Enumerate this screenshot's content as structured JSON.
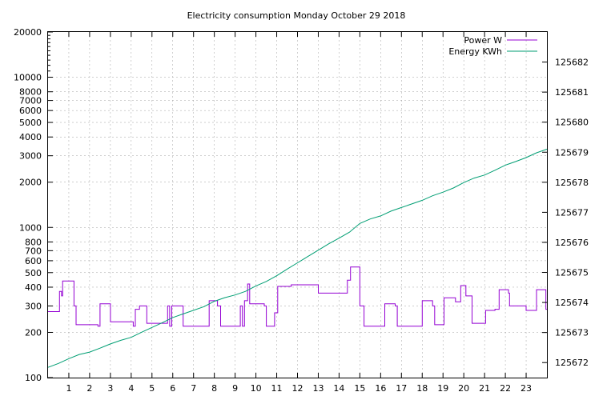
{
  "chart_data": {
    "type": "line",
    "title": "Electricity consumption Monday October 29 2018",
    "xlabel": "",
    "ylabel": "",
    "y2label": "",
    "grid": true,
    "legend_position": "top-right",
    "x_range": [
      0,
      24
    ],
    "x_ticks": [
      1,
      2,
      3,
      4,
      5,
      6,
      7,
      8,
      9,
      10,
      11,
      12,
      13,
      14,
      15,
      16,
      17,
      18,
      19,
      20,
      21,
      22,
      23
    ],
    "y_scale": "log",
    "y_range": [
      100,
      20000
    ],
    "y_ticks": [
      100,
      200,
      300,
      400,
      500,
      600,
      700,
      800,
      1000,
      2000,
      3000,
      4000,
      5000,
      6000,
      7000,
      8000,
      10000,
      20000
    ],
    "y2_range": [
      125671.5,
      125683
    ],
    "y2_ticks": [
      125672,
      125673,
      125674,
      125675,
      125676,
      125677,
      125678,
      125679,
      125680,
      125681,
      125682
    ],
    "series": [
      {
        "name": "Power W",
        "axis": "y",
        "color": "#9400d3",
        "step": true,
        "points": [
          [
            0.0,
            275
          ],
          [
            0.55,
            375
          ],
          [
            0.65,
            350
          ],
          [
            0.7,
            440
          ],
          [
            1.25,
            300
          ],
          [
            1.35,
            225
          ],
          [
            2.4,
            220
          ],
          [
            2.5,
            310
          ],
          [
            3.0,
            235
          ],
          [
            4.1,
            220
          ],
          [
            4.2,
            285
          ],
          [
            4.4,
            300
          ],
          [
            4.75,
            230
          ],
          [
            5.75,
            300
          ],
          [
            5.85,
            220
          ],
          [
            5.95,
            300
          ],
          [
            6.5,
            220
          ],
          [
            7.75,
            325
          ],
          [
            8.15,
            300
          ],
          [
            8.3,
            220
          ],
          [
            9.25,
            300
          ],
          [
            9.35,
            220
          ],
          [
            9.45,
            325
          ],
          [
            9.6,
            420
          ],
          [
            9.7,
            310
          ],
          [
            10.4,
            300
          ],
          [
            10.5,
            220
          ],
          [
            10.9,
            270
          ],
          [
            11.05,
            405
          ],
          [
            11.7,
            415
          ],
          [
            13.0,
            365
          ],
          [
            14.4,
            445
          ],
          [
            14.55,
            545
          ],
          [
            15.0,
            300
          ],
          [
            15.2,
            220
          ],
          [
            16.2,
            310
          ],
          [
            16.7,
            300
          ],
          [
            16.8,
            220
          ],
          [
            18.0,
            325
          ],
          [
            18.5,
            300
          ],
          [
            18.6,
            225
          ],
          [
            19.05,
            340
          ],
          [
            19.6,
            320
          ],
          [
            19.85,
            410
          ],
          [
            20.1,
            350
          ],
          [
            20.4,
            230
          ],
          [
            21.05,
            280
          ],
          [
            21.5,
            285
          ],
          [
            21.7,
            385
          ],
          [
            22.15,
            365
          ],
          [
            22.2,
            300
          ],
          [
            23.0,
            280
          ],
          [
            23.5,
            385
          ],
          [
            23.95,
            285
          ],
          [
            24.0,
            285
          ]
        ]
      },
      {
        "name": "Energy KWh",
        "axis": "y2",
        "color": "#009e73",
        "step": false,
        "points": [
          [
            0,
            125671.84
          ],
          [
            0.5,
            125671.97
          ],
          [
            1,
            125672.13
          ],
          [
            1.5,
            125672.27
          ],
          [
            2,
            125672.35
          ],
          [
            2.5,
            125672.48
          ],
          [
            3,
            125672.62
          ],
          [
            3.5,
            125672.74
          ],
          [
            4,
            125672.84
          ],
          [
            4.5,
            125673.01
          ],
          [
            5,
            125673.17
          ],
          [
            5.5,
            125673.33
          ],
          [
            6,
            125673.5
          ],
          [
            6.5,
            125673.62
          ],
          [
            7,
            125673.74
          ],
          [
            7.5,
            125673.86
          ],
          [
            8,
            125674.04
          ],
          [
            8.5,
            125674.16
          ],
          [
            9,
            125674.25
          ],
          [
            9.5,
            125674.37
          ],
          [
            10,
            125674.55
          ],
          [
            10.5,
            125674.7
          ],
          [
            11,
            125674.89
          ],
          [
            11.5,
            125675.11
          ],
          [
            12,
            125675.32
          ],
          [
            12.5,
            125675.53
          ],
          [
            13,
            125675.74
          ],
          [
            13.5,
            125675.95
          ],
          [
            14,
            125676.14
          ],
          [
            14.5,
            125676.34
          ],
          [
            15,
            125676.63
          ],
          [
            15.5,
            125676.78
          ],
          [
            16,
            125676.88
          ],
          [
            16.5,
            125677.04
          ],
          [
            17,
            125677.16
          ],
          [
            17.5,
            125677.28
          ],
          [
            18,
            125677.4
          ],
          [
            18.5,
            125677.55
          ],
          [
            19,
            125677.67
          ],
          [
            19.5,
            125677.81
          ],
          [
            20,
            125677.99
          ],
          [
            20.5,
            125678.14
          ],
          [
            21,
            125678.24
          ],
          [
            21.5,
            125678.4
          ],
          [
            22,
            125678.57
          ],
          [
            22.5,
            125678.69
          ],
          [
            23,
            125678.82
          ],
          [
            23.5,
            125678.98
          ],
          [
            24,
            125679.1
          ]
        ]
      }
    ]
  }
}
